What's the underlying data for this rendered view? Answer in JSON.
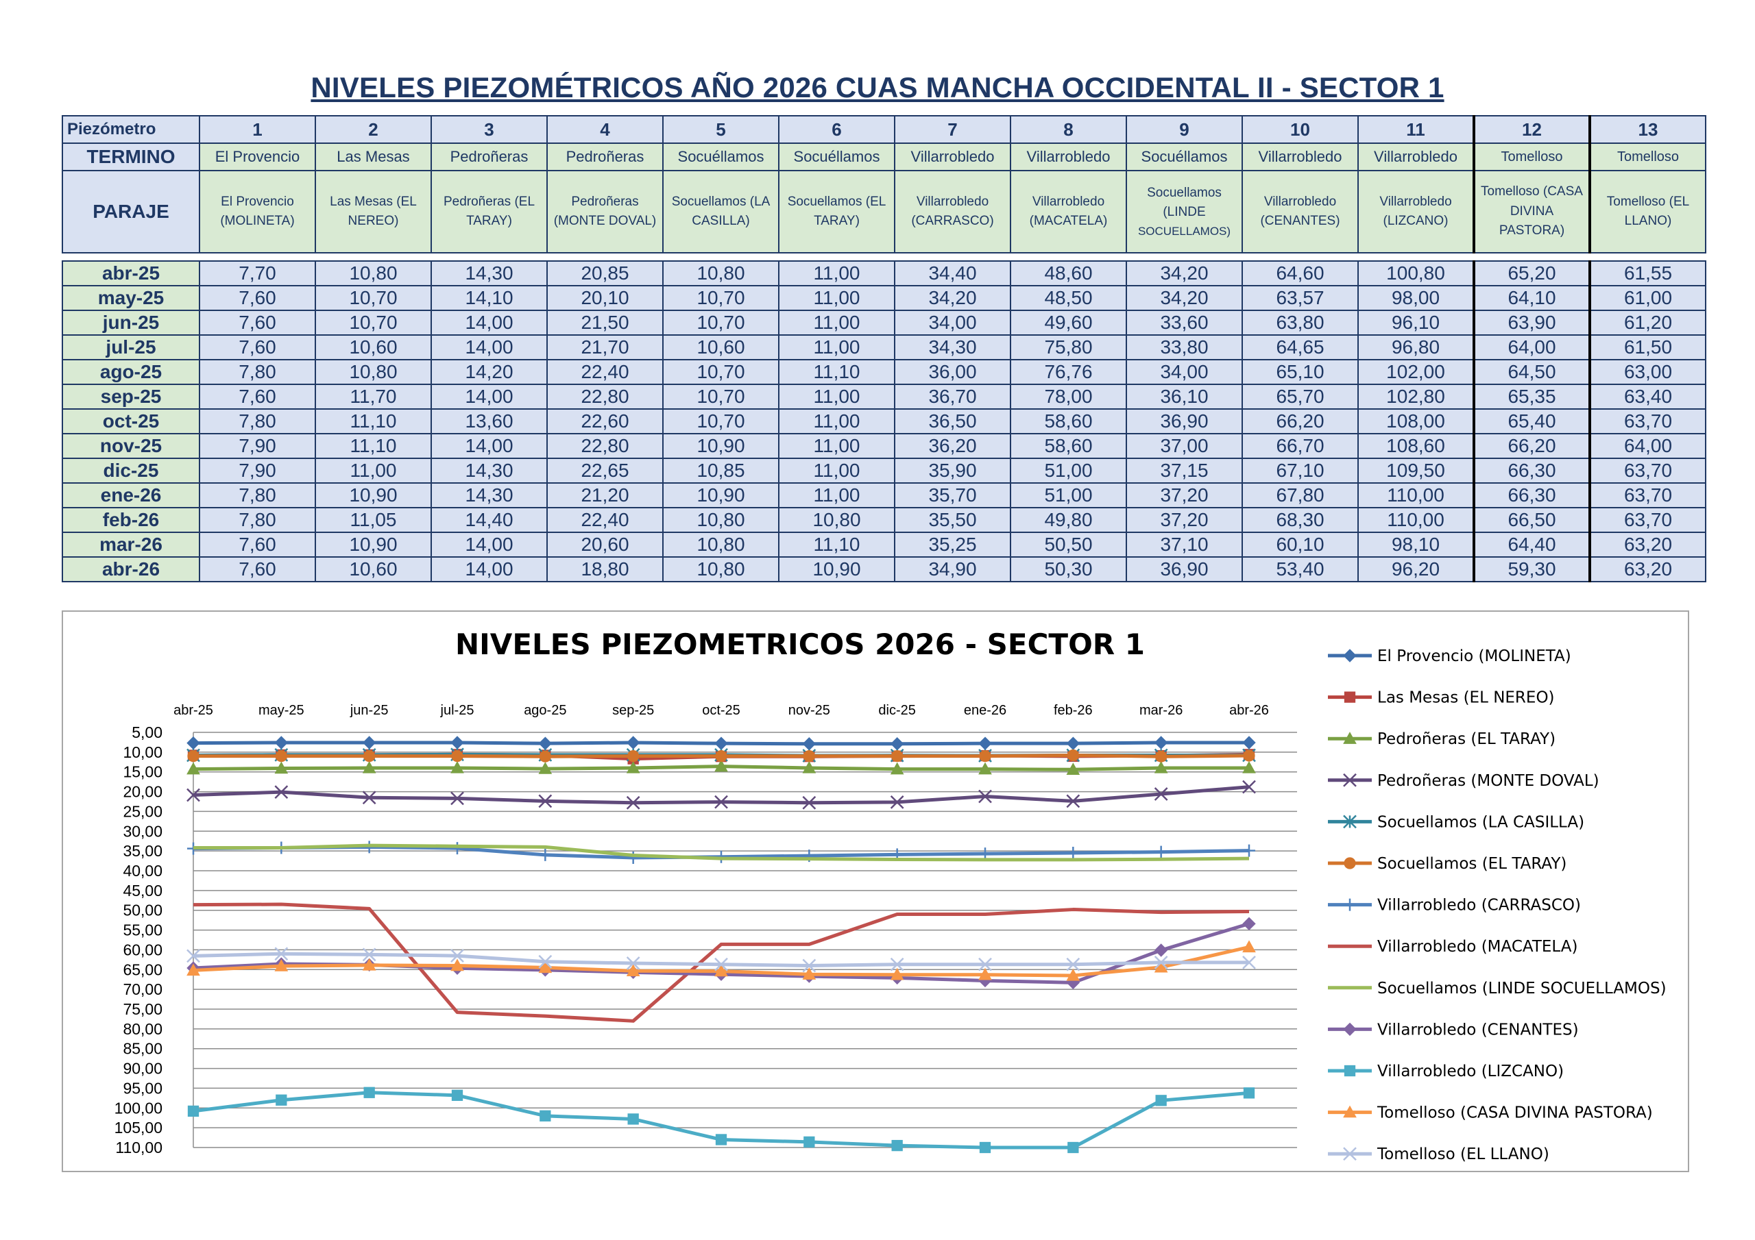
{
  "title": "NIVELES PIEZOMÉTRICOS AÑO 2026 CUAS MANCHA OCCIDENTAL II - SECTOR 1",
  "table": {
    "header_labels": {
      "piezometro": "Piezómetro",
      "termino": "TERMINO",
      "paraje": "PARAJE"
    },
    "numbers": [
      "1",
      "2",
      "3",
      "4",
      "5",
      "6",
      "7",
      "8",
      "9",
      "10",
      "11",
      "12",
      "13"
    ],
    "terminos": [
      "El Provencio",
      "Las Mesas",
      "Pedroñeras",
      "Pedroñeras",
      "Socuéllamos",
      "Socuéllamos",
      "Villarrobledo",
      "Villarrobledo",
      "Socuéllamos",
      "Villarrobledo",
      "Villarrobledo",
      "Tomelloso",
      "Tomelloso"
    ],
    "parajes": [
      [
        "El Provencio",
        "(MOLINETA)"
      ],
      [
        "Las Mesas (EL",
        "NEREO)"
      ],
      [
        "Pedroñeras (EL",
        "TARAY)"
      ],
      [
        "Pedroñeras",
        "(MONTE DOVAL)"
      ],
      [
        "Socuellamos  (LA",
        "CASILLA)"
      ],
      [
        "Socuellamos (EL",
        "TARAY)"
      ],
      [
        "Villarrobledo",
        "(CARRASCO)"
      ],
      [
        "Villarrobledo",
        "(MACATELA)"
      ],
      [
        "Socuellamos",
        "(LINDE",
        "SOCUELLAMOS)"
      ],
      [
        "Villarrobledo",
        "(CENANTES)"
      ],
      [
        "Villarrobledo",
        "(LIZCANO)"
      ],
      [
        "Tomelloso (CASA",
        "DIVINA",
        "PASTORA)"
      ],
      [
        "Tomelloso (EL",
        "LLANO)"
      ]
    ],
    "rows": [
      {
        "month": "abr-25",
        "values": [
          "7,70",
          "10,80",
          "14,30",
          "20,85",
          "10,80",
          "11,00",
          "34,40",
          "48,60",
          "34,20",
          "64,60",
          "100,80",
          "65,20",
          "61,55"
        ]
      },
      {
        "month": "may-25",
        "values": [
          "7,60",
          "10,70",
          "14,10",
          "20,10",
          "10,70",
          "11,00",
          "34,20",
          "48,50",
          "34,20",
          "63,57",
          "98,00",
          "64,10",
          "61,00"
        ]
      },
      {
        "month": "jun-25",
        "values": [
          "7,60",
          "10,70",
          "14,00",
          "21,50",
          "10,70",
          "11,00",
          "34,00",
          "49,60",
          "33,60",
          "63,80",
          "96,10",
          "63,90",
          "61,20"
        ]
      },
      {
        "month": "jul-25",
        "values": [
          "7,60",
          "10,60",
          "14,00",
          "21,70",
          "10,60",
          "11,00",
          "34,30",
          "75,80",
          "33,80",
          "64,65",
          "96,80",
          "64,00",
          "61,50"
        ]
      },
      {
        "month": "ago-25",
        "values": [
          "7,80",
          "10,80",
          "14,20",
          "22,40",
          "10,70",
          "11,10",
          "36,00",
          "76,76",
          "34,00",
          "65,10",
          "102,00",
          "64,50",
          "63,00"
        ]
      },
      {
        "month": "sep-25",
        "values": [
          "7,60",
          "11,70",
          "14,00",
          "22,80",
          "10,70",
          "11,00",
          "36,70",
          "78,00",
          "36,10",
          "65,70",
          "102,80",
          "65,35",
          "63,40"
        ]
      },
      {
        "month": "oct-25",
        "values": [
          "7,80",
          "11,10",
          "13,60",
          "22,60",
          "10,70",
          "11,00",
          "36,50",
          "58,60",
          "36,90",
          "66,20",
          "108,00",
          "65,40",
          "63,70"
        ]
      },
      {
        "month": "nov-25",
        "values": [
          "7,90",
          "11,10",
          "14,00",
          "22,80",
          "10,90",
          "11,00",
          "36,20",
          "58,60",
          "37,00",
          "66,70",
          "108,60",
          "66,20",
          "64,00"
        ]
      },
      {
        "month": "dic-25",
        "values": [
          "7,90",
          "11,00",
          "14,30",
          "22,65",
          "10,85",
          "11,00",
          "35,90",
          "51,00",
          "37,15",
          "67,10",
          "109,50",
          "66,30",
          "63,70"
        ]
      },
      {
        "month": "ene-26",
        "values": [
          "7,80",
          "10,90",
          "14,30",
          "21,20",
          "10,90",
          "11,00",
          "35,70",
          "51,00",
          "37,20",
          "67,80",
          "110,00",
          "66,30",
          "63,70"
        ]
      },
      {
        "month": "feb-26",
        "values": [
          "7,80",
          "11,05",
          "14,40",
          "22,40",
          "10,80",
          "10,80",
          "35,50",
          "49,80",
          "37,20",
          "68,30",
          "110,00",
          "66,50",
          "63,70"
        ]
      },
      {
        "month": "mar-26",
        "values": [
          "7,60",
          "10,90",
          "14,00",
          "20,60",
          "10,80",
          "11,10",
          "35,25",
          "50,50",
          "37,10",
          "60,10",
          "98,10",
          "64,40",
          "63,20"
        ]
      },
      {
        "month": "abr-26",
        "values": [
          "7,60",
          "10,60",
          "14,00",
          "18,80",
          "10,80",
          "10,90",
          "34,90",
          "50,30",
          "36,90",
          "53,40",
          "96,20",
          "59,30",
          "63,20"
        ]
      }
    ]
  },
  "chart_data": {
    "type": "line",
    "title": "NIVELES PIEZOMETRICOS 2026 - SECTOR 1",
    "xlabel": "",
    "ylabel": "",
    "categories": [
      "abr-25",
      "may-25",
      "jun-25",
      "jul-25",
      "ago-25",
      "sep-25",
      "oct-25",
      "nov-25",
      "dic-25",
      "ene-26",
      "feb-26",
      "mar-26",
      "abr-26"
    ],
    "y_axis": {
      "reversed": true,
      "min": 5,
      "max": 110,
      "step": 5,
      "tick_labels": [
        "5,00",
        "10,00",
        "15,00",
        "20,00",
        "25,00",
        "30,00",
        "35,00",
        "40,00",
        "45,00",
        "50,00",
        "55,00",
        "60,00",
        "65,00",
        "70,00",
        "75,00",
        "80,00",
        "85,00",
        "90,00",
        "95,00",
        "100,00",
        "105,00",
        "110,00"
      ]
    },
    "x_axis_position": "top",
    "grid": true,
    "legend_position": "right",
    "series": [
      {
        "name": "El Provencio (MOLINETA)",
        "color": "#3e6eab",
        "marker": "diamond",
        "values": [
          7.7,
          7.6,
          7.6,
          7.6,
          7.8,
          7.6,
          7.8,
          7.9,
          7.9,
          7.8,
          7.8,
          7.6,
          7.6
        ]
      },
      {
        "name": "Las Mesas (EL NEREO)",
        "color": "#b9443f",
        "marker": "square",
        "values": [
          10.8,
          10.7,
          10.7,
          10.6,
          10.8,
          11.7,
          11.1,
          11.1,
          11.0,
          10.9,
          11.05,
          10.9,
          10.6
        ]
      },
      {
        "name": "Pedroñeras (EL TARAY)",
        "color": "#7aa043",
        "marker": "triangle",
        "values": [
          14.3,
          14.1,
          14.0,
          14.0,
          14.2,
          14.0,
          13.6,
          14.0,
          14.3,
          14.3,
          14.4,
          14.0,
          14.0
        ]
      },
      {
        "name": "Pedroñeras (MONTE DOVAL)",
        "color": "#604a7b",
        "marker": "x",
        "values": [
          20.85,
          20.1,
          21.5,
          21.7,
          22.4,
          22.8,
          22.6,
          22.8,
          22.65,
          21.2,
          22.4,
          20.6,
          18.8
        ]
      },
      {
        "name": "Socuellamos  (LA CASILLA)",
        "color": "#31859c",
        "marker": "star",
        "values": [
          10.8,
          10.7,
          10.7,
          10.6,
          10.7,
          10.7,
          10.7,
          10.9,
          10.85,
          10.9,
          10.8,
          10.8,
          10.8
        ]
      },
      {
        "name": "Socuellamos (EL TARAY)",
        "color": "#d3742b",
        "marker": "circle",
        "values": [
          11.0,
          11.0,
          11.0,
          11.0,
          11.1,
          11.0,
          11.0,
          11.0,
          11.0,
          11.0,
          10.8,
          11.1,
          10.9
        ]
      },
      {
        "name": "Villarrobledo (CARRASCO)",
        "color": "#4f81bd",
        "marker": "plus",
        "values": [
          34.4,
          34.2,
          34.0,
          34.3,
          36.0,
          36.7,
          36.5,
          36.2,
          35.9,
          35.7,
          35.5,
          35.25,
          34.9
        ]
      },
      {
        "name": "Villarrobledo (MACATELA)",
        "color": "#c0504d",
        "marker": "none",
        "values": [
          48.6,
          48.5,
          49.6,
          75.8,
          76.76,
          78.0,
          58.6,
          58.6,
          51.0,
          51.0,
          49.8,
          50.5,
          50.3
        ]
      },
      {
        "name": "Socuellamos (LINDE SOCUELLAMOS)",
        "color": "#9bbb59",
        "marker": "none",
        "values": [
          34.2,
          34.2,
          33.6,
          33.8,
          34.0,
          36.1,
          36.9,
          37.0,
          37.15,
          37.2,
          37.2,
          37.1,
          36.9
        ]
      },
      {
        "name": "Villarrobledo  (CENANTES)",
        "color": "#8064a2",
        "marker": "diamond",
        "values": [
          64.6,
          63.57,
          63.8,
          64.65,
          65.1,
          65.7,
          66.2,
          66.7,
          67.1,
          67.8,
          68.3,
          60.1,
          53.4
        ]
      },
      {
        "name": "Villarrobledo (LIZCANO)",
        "color": "#4bacc6",
        "marker": "square",
        "values": [
          100.8,
          98.0,
          96.1,
          96.8,
          102.0,
          102.8,
          108.0,
          108.6,
          109.5,
          110.0,
          110.0,
          98.1,
          96.2
        ]
      },
      {
        "name": "Tomelloso (CASA DIVINA PASTORA)",
        "color": "#f79646",
        "marker": "triangle",
        "values": [
          65.2,
          64.1,
          63.9,
          64.0,
          64.5,
          65.35,
          65.4,
          66.2,
          66.3,
          66.3,
          66.5,
          64.4,
          59.3
        ]
      },
      {
        "name": "Tomelloso (EL LLANO)",
        "color": "#b3c1e0",
        "marker": "x",
        "values": [
          61.55,
          61.0,
          61.2,
          61.5,
          63.0,
          63.4,
          63.7,
          64.0,
          63.7,
          63.7,
          63.7,
          63.2,
          63.2
        ]
      }
    ]
  }
}
